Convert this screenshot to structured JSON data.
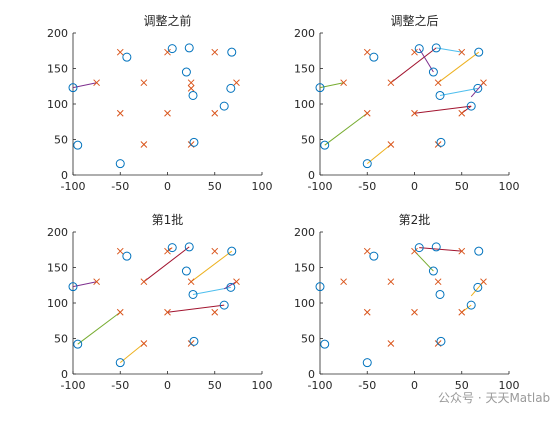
{
  "watermark": "公众号 · 天天Matlab",
  "colors": {
    "task_marker": "#d95319",
    "agent_marker": "#0072bd",
    "pair_colors": [
      "#d95319",
      "#7e2f8e",
      "#77ac30",
      "#edb120",
      "#4dbeee",
      "#a2142f",
      "#0072bd"
    ],
    "axis": "#262626"
  },
  "chart_data": [
    {
      "type": "scatter",
      "title": "调整之前",
      "xlim": [
        -100,
        100
      ],
      "ylim": [
        0,
        200
      ],
      "xticks": [
        -100,
        -50,
        0,
        50,
        100
      ],
      "yticks": [
        0,
        50,
        100,
        150,
        200
      ],
      "series": [
        {
          "marker": "x",
          "points": [
            [
              -50,
              173
            ],
            [
              -75,
              130
            ],
            [
              -50,
              87
            ],
            [
              -25,
              43
            ],
            [
              -25,
              130
            ],
            [
              0,
              87
            ],
            [
              0,
              173
            ],
            [
              25,
              130
            ],
            [
              25,
              43
            ],
            [
              50,
              173
            ],
            [
              50,
              87
            ],
            [
              73,
              130
            ],
            [
              25,
              122
            ]
          ]
        },
        {
          "marker": "o",
          "points": [
            [
              -43,
              166
            ],
            [
              -100,
              123
            ],
            [
              -95,
              42
            ],
            [
              -50,
              16
            ],
            [
              5,
              178
            ],
            [
              23,
              179
            ],
            [
              20,
              145
            ],
            [
              27,
              112
            ],
            [
              28,
              46
            ],
            [
              60,
              97
            ],
            [
              67,
              122
            ],
            [
              68,
              173
            ]
          ]
        }
      ],
      "links": [
        {
          "from": [
            -100,
            123
          ],
          "to": [
            -75,
            130
          ],
          "color": 1
        }
      ]
    },
    {
      "type": "scatter",
      "title": "调整之后",
      "xlim": [
        -100,
        100
      ],
      "ylim": [
        0,
        200
      ],
      "xticks": [
        -100,
        -50,
        0,
        50,
        100
      ],
      "yticks": [
        0,
        50,
        100,
        150,
        200
      ],
      "series": [
        {
          "marker": "x",
          "points": [
            [
              -50,
              173
            ],
            [
              -75,
              130
            ],
            [
              -50,
              87
            ],
            [
              -25,
              43
            ],
            [
              -25,
              130
            ],
            [
              0,
              87
            ],
            [
              0,
              173
            ],
            [
              25,
              130
            ],
            [
              25,
              43
            ],
            [
              50,
              173
            ],
            [
              50,
              87
            ],
            [
              73,
              130
            ]
          ]
        },
        {
          "marker": "o",
          "points": [
            [
              -43,
              166
            ],
            [
              -100,
              123
            ],
            [
              -95,
              42
            ],
            [
              -50,
              16
            ],
            [
              5,
              178
            ],
            [
              23,
              179
            ],
            [
              20,
              145
            ],
            [
              27,
              112
            ],
            [
              28,
              46
            ],
            [
              60,
              97
            ],
            [
              67,
              122
            ],
            [
              68,
              173
            ]
          ]
        }
      ],
      "links": [
        {
          "from": [
            -100,
            123
          ],
          "to": [
            -75,
            130
          ],
          "color": 2
        },
        {
          "from": [
            -95,
            42
          ],
          "to": [
            -50,
            87
          ],
          "color": 2
        },
        {
          "from": [
            -50,
            16
          ],
          "to": [
            -25,
            43
          ],
          "color": 3
        },
        {
          "from": [
            -25,
            130
          ],
          "to": [
            23,
            179
          ],
          "color": 5
        },
        {
          "from": [
            5,
            178
          ],
          "to": [
            20,
            145
          ],
          "color": 1
        },
        {
          "from": [
            23,
            179
          ],
          "to": [
            50,
            173
          ],
          "color": 4
        },
        {
          "from": [
            25,
            130
          ],
          "to": [
            68,
            173
          ],
          "color": 3
        },
        {
          "from": [
            27,
            112
          ],
          "to": [
            67,
            122
          ],
          "color": 4
        },
        {
          "from": [
            0,
            87
          ],
          "to": [
            60,
            97
          ],
          "color": 5
        },
        {
          "from": [
            50,
            87
          ],
          "to": [
            60,
            97
          ],
          "color": 5
        },
        {
          "from": [
            73,
            130
          ],
          "to": [
            60,
            110
          ],
          "color": 1
        }
      ]
    },
    {
      "type": "scatter",
      "title": "第1批",
      "xlim": [
        -100,
        100
      ],
      "ylim": [
        0,
        200
      ],
      "xticks": [
        -100,
        -50,
        0,
        50,
        100
      ],
      "yticks": [
        0,
        50,
        100,
        150,
        200
      ],
      "series": [
        {
          "marker": "x",
          "points": [
            [
              -50,
              173
            ],
            [
              -75,
              130
            ],
            [
              -50,
              87
            ],
            [
              -25,
              43
            ],
            [
              -25,
              130
            ],
            [
              0,
              87
            ],
            [
              0,
              173
            ],
            [
              25,
              130
            ],
            [
              25,
              43
            ],
            [
              50,
              173
            ],
            [
              50,
              87
            ],
            [
              73,
              130
            ]
          ]
        },
        {
          "marker": "o",
          "points": [
            [
              -43,
              166
            ],
            [
              -100,
              123
            ],
            [
              -95,
              42
            ],
            [
              -50,
              16
            ],
            [
              5,
              178
            ],
            [
              23,
              179
            ],
            [
              20,
              145
            ],
            [
              27,
              112
            ],
            [
              28,
              46
            ],
            [
              60,
              97
            ],
            [
              67,
              122
            ],
            [
              68,
              173
            ]
          ]
        }
      ],
      "links": [
        {
          "from": [
            -100,
            123
          ],
          "to": [
            -75,
            130
          ],
          "color": 1
        },
        {
          "from": [
            -95,
            42
          ],
          "to": [
            -50,
            87
          ],
          "color": 2
        },
        {
          "from": [
            -50,
            16
          ],
          "to": [
            -25,
            43
          ],
          "color": 3
        },
        {
          "from": [
            -25,
            130
          ],
          "to": [
            23,
            179
          ],
          "color": 5
        },
        {
          "from": [
            5,
            178
          ],
          "to": [
            0,
            173
          ],
          "color": 0
        },
        {
          "from": [
            25,
            130
          ],
          "to": [
            68,
            173
          ],
          "color": 3
        },
        {
          "from": [
            27,
            112
          ],
          "to": [
            67,
            122
          ],
          "color": 4
        },
        {
          "from": [
            0,
            87
          ],
          "to": [
            60,
            97
          ],
          "color": 5
        },
        {
          "from": [
            73,
            130
          ],
          "to": [
            60,
            120
          ],
          "color": 1
        }
      ]
    },
    {
      "type": "scatter",
      "title": "第2批",
      "xlim": [
        -100,
        100
      ],
      "ylim": [
        0,
        200
      ],
      "xticks": [
        -100,
        -50,
        0,
        50,
        100
      ],
      "yticks": [
        0,
        50,
        100,
        150,
        200
      ],
      "series": [
        {
          "marker": "x",
          "points": [
            [
              -50,
              173
            ],
            [
              -75,
              130
            ],
            [
              -50,
              87
            ],
            [
              -25,
              43
            ],
            [
              -25,
              130
            ],
            [
              0,
              87
            ],
            [
              0,
              173
            ],
            [
              25,
              130
            ],
            [
              25,
              43
            ],
            [
              50,
              173
            ],
            [
              50,
              87
            ],
            [
              73,
              130
            ]
          ]
        },
        {
          "marker": "o",
          "points": [
            [
              -43,
              166
            ],
            [
              -100,
              123
            ],
            [
              -95,
              42
            ],
            [
              -50,
              16
            ],
            [
              5,
              178
            ],
            [
              23,
              179
            ],
            [
              20,
              145
            ],
            [
              27,
              112
            ],
            [
              28,
              46
            ],
            [
              60,
              97
            ],
            [
              67,
              122
            ],
            [
              68,
              173
            ]
          ]
        }
      ],
      "links": [
        {
          "from": [
            5,
            178
          ],
          "to": [
            50,
            173
          ],
          "color": 5
        },
        {
          "from": [
            0,
            173
          ],
          "to": [
            20,
            145
          ],
          "color": 2
        },
        {
          "from": [
            50,
            87
          ],
          "to": [
            60,
            97
          ],
          "color": 3
        },
        {
          "from": [
            73,
            130
          ],
          "to": [
            60,
            110
          ],
          "color": 3
        }
      ]
    }
  ]
}
